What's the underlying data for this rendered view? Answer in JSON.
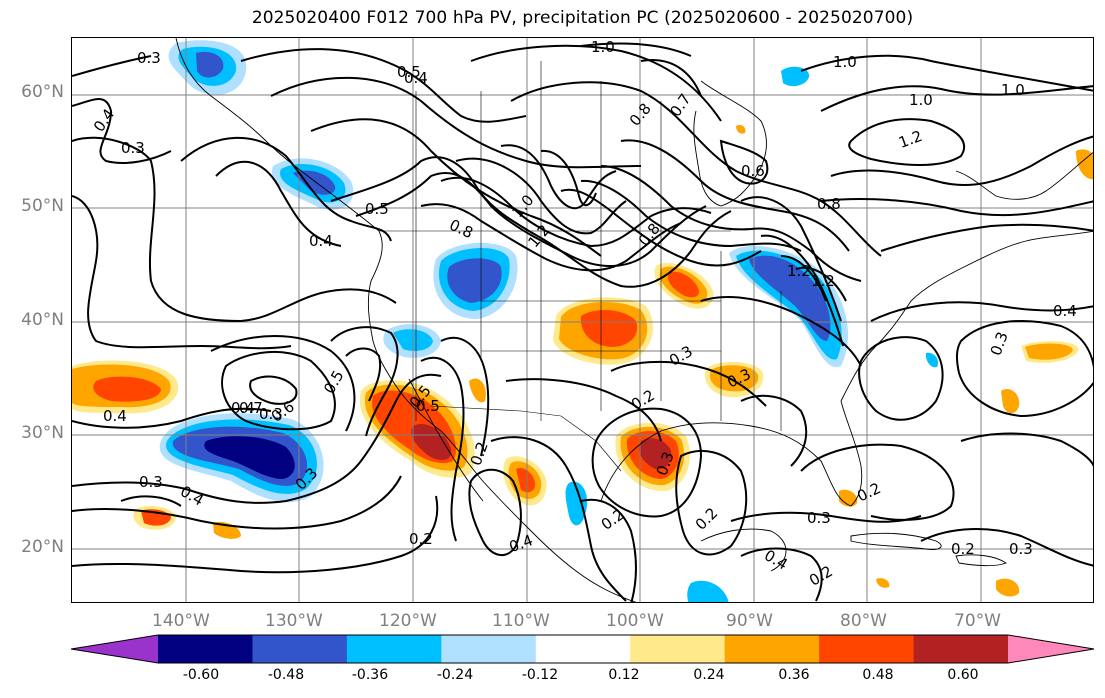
{
  "title": "2025020400 F012 700 hPa PV, precipitation PC (2025020600 - 2025020700)",
  "map": {
    "lat_labels": [
      "60°N",
      "50°N",
      "40°N",
      "30°N",
      "20°N"
    ],
    "lon_labels": [
      "140°W",
      "130°W",
      "120°W",
      "110°W",
      "100°W",
      "90°W",
      "80°W",
      "70°W"
    ],
    "contour_labels": [
      "0.3",
      "0.4",
      "0.5",
      "0.4",
      "1.0",
      "0.3",
      "0.4",
      "0.5",
      "0.8",
      "0.7",
      "1.0",
      "0.8",
      "1.2",
      "0.6",
      "0.8",
      "1.0",
      "1.2",
      "1.0",
      "0.4",
      "0.3",
      "0.5",
      "0.4",
      "0.8",
      "1.2",
      "1.2",
      "1.0",
      "0.3",
      "0.4",
      "0.3",
      "0.7",
      "0.6",
      "0.5",
      "0.5",
      "0.3",
      "0.2",
      "0.2",
      "0.3",
      "0.4",
      "0.2",
      "0.2",
      "0.3",
      "0.2",
      "0.4",
      "0.3",
      "0.2",
      "0.3",
      "0.2",
      "0.2",
      "0.4",
      "0.3"
    ],
    "colors": {
      "grid": "#808080",
      "contour": "#000000",
      "coast": "#000000"
    }
  },
  "colorbar": {
    "ticks": [
      "-0.60",
      "-0.48",
      "-0.36",
      "-0.24",
      "-0.12",
      "0.12",
      "0.24",
      "0.36",
      "0.48",
      "0.60"
    ],
    "colors": [
      "#9933cc",
      "#000080",
      "#3355cc",
      "#00bfff",
      "#b0e0ff",
      "#ffffff",
      "#ffe98a",
      "#ffa500",
      "#ff4500",
      "#b22222",
      "#ff88bb"
    ]
  }
}
